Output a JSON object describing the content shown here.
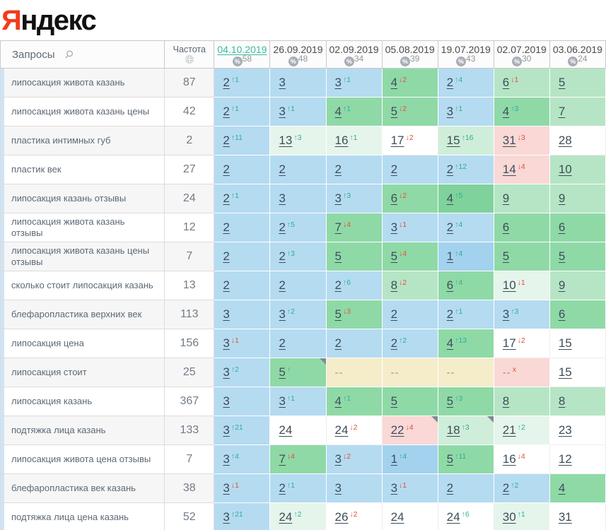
{
  "logo": {
    "first_letter": "Я",
    "rest": "ндекс"
  },
  "header": {
    "queries_label": "Запросы",
    "frequency_label": "Частота"
  },
  "columns": [
    {
      "date": "04.10.2019",
      "coverage": "58",
      "active": true
    },
    {
      "date": "26.09.2019",
      "coverage": "48",
      "active": false
    },
    {
      "date": "02.09.2019",
      "coverage": "34",
      "active": false
    },
    {
      "date": "05.08.2019",
      "coverage": "39",
      "active": false
    },
    {
      "date": "19.07.2019",
      "coverage": "43",
      "active": false
    },
    {
      "date": "02.07.2019",
      "coverage": "30",
      "active": false
    },
    {
      "date": "03.06.2019",
      "coverage": "24",
      "active": false
    }
  ],
  "colors": {
    "logo_red": "#f43b1d",
    "accent_teal": "#3bb89f",
    "change_up": "#2fae94",
    "change_down": "#e0503f",
    "pos_blue": "#b5dbf1",
    "pos_blue_dark": "#a3d2ef",
    "pos_green": "#8fd9a7",
    "pos_green_dark": "#7fd29b",
    "pos_lightgreen": "#b6e5c5",
    "pos_palegreen": "#cfeeda",
    "pos_verylightgreen": "#e5f5eb",
    "pos_white": "#ffffff",
    "pos_pink": "#f9d8d6",
    "pos_missing_tan": "#f5ecca"
  },
  "rows": [
    {
      "query": "липосакция живота казань",
      "frequency": "87",
      "cells": [
        {
          "value": "2",
          "chg": "↑1",
          "dir": "up",
          "bg": "b"
        },
        {
          "value": "3",
          "chg": "",
          "dir": "",
          "bg": "b"
        },
        {
          "value": "3",
          "chg": "↑1",
          "dir": "up",
          "bg": "b"
        },
        {
          "value": "4",
          "chg": "↓2",
          "dir": "down",
          "bg": "g"
        },
        {
          "value": "2",
          "chg": "↑4",
          "dir": "up",
          "bg": "b"
        },
        {
          "value": "6",
          "chg": "↓1",
          "dir": "down",
          "bg": "lg"
        },
        {
          "value": "5",
          "chg": "",
          "dir": "",
          "bg": "lg"
        }
      ]
    },
    {
      "query": "липосакция живота казань цены",
      "frequency": "42",
      "cells": [
        {
          "value": "2",
          "chg": "↑1",
          "dir": "up",
          "bg": "b"
        },
        {
          "value": "3",
          "chg": "↑1",
          "dir": "up",
          "bg": "b"
        },
        {
          "value": "4",
          "chg": "↑1",
          "dir": "up",
          "bg": "g"
        },
        {
          "value": "5",
          "chg": "↓2",
          "dir": "down",
          "bg": "g"
        },
        {
          "value": "3",
          "chg": "↑1",
          "dir": "up",
          "bg": "b"
        },
        {
          "value": "4",
          "chg": "↑3",
          "dir": "up",
          "bg": "g"
        },
        {
          "value": "7",
          "chg": "",
          "dir": "",
          "bg": "lg"
        }
      ]
    },
    {
      "query": "пластика интимных губ",
      "frequency": "2",
      "cells": [
        {
          "value": "2",
          "chg": "↑11",
          "dir": "up",
          "bg": "b"
        },
        {
          "value": "13",
          "chg": "↑3",
          "dir": "up",
          "bg": "vlg"
        },
        {
          "value": "16",
          "chg": "↑1",
          "dir": "up",
          "bg": "vlg"
        },
        {
          "value": "17",
          "chg": "↓2",
          "dir": "down",
          "bg": "w"
        },
        {
          "value": "15",
          "chg": "↑16",
          "dir": "up",
          "bg": "pg"
        },
        {
          "value": "31",
          "chg": "↓3",
          "dir": "down",
          "bg": "pk"
        },
        {
          "value": "28",
          "chg": "",
          "dir": "",
          "bg": "w"
        }
      ]
    },
    {
      "query": "пластик век",
      "frequency": "27",
      "cells": [
        {
          "value": "2",
          "chg": "",
          "dir": "",
          "bg": "b"
        },
        {
          "value": "2",
          "chg": "",
          "dir": "",
          "bg": "b"
        },
        {
          "value": "2",
          "chg": "",
          "dir": "",
          "bg": "b"
        },
        {
          "value": "2",
          "chg": "",
          "dir": "",
          "bg": "b"
        },
        {
          "value": "2",
          "chg": "↑12",
          "dir": "up",
          "bg": "b"
        },
        {
          "value": "14",
          "chg": "↓4",
          "dir": "down",
          "bg": "pk"
        },
        {
          "value": "10",
          "chg": "",
          "dir": "",
          "bg": "lg"
        }
      ]
    },
    {
      "query": "липосакция казань отзывы",
      "frequency": "24",
      "cells": [
        {
          "value": "2",
          "chg": "↑1",
          "dir": "up",
          "bg": "b"
        },
        {
          "value": "3",
          "chg": "",
          "dir": "",
          "bg": "b"
        },
        {
          "value": "3",
          "chg": "↑3",
          "dir": "up",
          "bg": "b"
        },
        {
          "value": "6",
          "chg": "↓2",
          "dir": "down",
          "bg": "g"
        },
        {
          "value": "4",
          "chg": "↑5",
          "dir": "up",
          "bg": "g2"
        },
        {
          "value": "9",
          "chg": "",
          "dir": "",
          "bg": "lg"
        },
        {
          "value": "9",
          "chg": "",
          "dir": "",
          "bg": "lg"
        }
      ]
    },
    {
      "query": "липосакция живота казань отзывы",
      "frequency": "12",
      "cells": [
        {
          "value": "2",
          "chg": "",
          "dir": "",
          "bg": "b"
        },
        {
          "value": "2",
          "chg": "↑5",
          "dir": "up",
          "bg": "b"
        },
        {
          "value": "7",
          "chg": "↓4",
          "dir": "down",
          "bg": "g"
        },
        {
          "value": "3",
          "chg": "↓1",
          "dir": "down",
          "bg": "b"
        },
        {
          "value": "2",
          "chg": "↑4",
          "dir": "up",
          "bg": "b"
        },
        {
          "value": "6",
          "chg": "",
          "dir": "",
          "bg": "g"
        },
        {
          "value": "6",
          "chg": "",
          "dir": "",
          "bg": "g"
        }
      ]
    },
    {
      "query": "липосакция живота казань цены отзывы",
      "frequency": "7",
      "cells": [
        {
          "value": "2",
          "chg": "",
          "dir": "",
          "bg": "b"
        },
        {
          "value": "2",
          "chg": "↑3",
          "dir": "up",
          "bg": "b"
        },
        {
          "value": "5",
          "chg": "",
          "dir": "",
          "bg": "g"
        },
        {
          "value": "5",
          "chg": "↓4",
          "dir": "down",
          "bg": "g"
        },
        {
          "value": "1",
          "chg": "↑4",
          "dir": "up",
          "bg": "b1"
        },
        {
          "value": "5",
          "chg": "",
          "dir": "",
          "bg": "g"
        },
        {
          "value": "5",
          "chg": "",
          "dir": "",
          "bg": "g"
        }
      ]
    },
    {
      "query": "сколько стоит липосакция казань",
      "frequency": "13",
      "cells": [
        {
          "value": "2",
          "chg": "",
          "dir": "",
          "bg": "b"
        },
        {
          "value": "2",
          "chg": "",
          "dir": "",
          "bg": "b"
        },
        {
          "value": "2",
          "chg": "↑6",
          "dir": "up",
          "bg": "b"
        },
        {
          "value": "8",
          "chg": "↓2",
          "dir": "down",
          "bg": "lg"
        },
        {
          "value": "6",
          "chg": "↑4",
          "dir": "up",
          "bg": "g"
        },
        {
          "value": "10",
          "chg": "↓1",
          "dir": "down",
          "bg": "vlg"
        },
        {
          "value": "9",
          "chg": "",
          "dir": "",
          "bg": "lg"
        }
      ]
    },
    {
      "query": "блефаропластика верхних век",
      "frequency": "113",
      "cells": [
        {
          "value": "3",
          "chg": "",
          "dir": "",
          "bg": "b"
        },
        {
          "value": "3",
          "chg": "↑2",
          "dir": "up",
          "bg": "b"
        },
        {
          "value": "5",
          "chg": "↓3",
          "dir": "down",
          "bg": "g"
        },
        {
          "value": "2",
          "chg": "",
          "dir": "",
          "bg": "b"
        },
        {
          "value": "2",
          "chg": "↑1",
          "dir": "up",
          "bg": "b"
        },
        {
          "value": "3",
          "chg": "↑3",
          "dir": "up",
          "bg": "b"
        },
        {
          "value": "6",
          "chg": "",
          "dir": "",
          "bg": "g"
        }
      ]
    },
    {
      "query": "липосакция цена",
      "frequency": "156",
      "cells": [
        {
          "value": "3",
          "chg": "↓1",
          "dir": "down",
          "bg": "b"
        },
        {
          "value": "2",
          "chg": "",
          "dir": "",
          "bg": "b"
        },
        {
          "value": "2",
          "chg": "",
          "dir": "",
          "bg": "b"
        },
        {
          "value": "2",
          "chg": "↑2",
          "dir": "up",
          "bg": "b"
        },
        {
          "value": "4",
          "chg": "↑13",
          "dir": "up",
          "bg": "g"
        },
        {
          "value": "17",
          "chg": "↓2",
          "dir": "down",
          "bg": "w"
        },
        {
          "value": "15",
          "chg": "",
          "dir": "",
          "bg": "w"
        }
      ]
    },
    {
      "query": "липосакция стоит",
      "frequency": "25",
      "cells": [
        {
          "value": "3",
          "chg": "↑2",
          "dir": "up",
          "bg": "b"
        },
        {
          "value": "5",
          "chg": "↑",
          "dir": "up",
          "bg": "g",
          "note": true
        },
        {
          "value": "--",
          "chg": "",
          "dir": "",
          "bg": "tan"
        },
        {
          "value": "--",
          "chg": "",
          "dir": "",
          "bg": "tan"
        },
        {
          "value": "--",
          "chg": "",
          "dir": "",
          "bg": "tan"
        },
        {
          "value": "--",
          "chg": "x",
          "dir": "down",
          "bg": "pk"
        },
        {
          "value": "15",
          "chg": "",
          "dir": "",
          "bg": "w"
        }
      ]
    },
    {
      "query": "липосакция казань",
      "frequency": "367",
      "cells": [
        {
          "value": "3",
          "chg": "",
          "dir": "",
          "bg": "b"
        },
        {
          "value": "3",
          "chg": "↑1",
          "dir": "up",
          "bg": "b"
        },
        {
          "value": "4",
          "chg": "↑1",
          "dir": "up",
          "bg": "g"
        },
        {
          "value": "5",
          "chg": "",
          "dir": "",
          "bg": "g"
        },
        {
          "value": "5",
          "chg": "↑3",
          "dir": "up",
          "bg": "g"
        },
        {
          "value": "8",
          "chg": "",
          "dir": "",
          "bg": "lg"
        },
        {
          "value": "8",
          "chg": "",
          "dir": "",
          "bg": "lg"
        }
      ]
    },
    {
      "query": "подтяжка лица казань",
      "frequency": "133",
      "cells": [
        {
          "value": "3",
          "chg": "↑21",
          "dir": "up",
          "bg": "b"
        },
        {
          "value": "24",
          "chg": "",
          "dir": "",
          "bg": "w"
        },
        {
          "value": "24",
          "chg": "↓2",
          "dir": "down",
          "bg": "w"
        },
        {
          "value": "22",
          "chg": "↓4",
          "dir": "down",
          "bg": "pk",
          "note": true
        },
        {
          "value": "18",
          "chg": "↑3",
          "dir": "up",
          "bg": "pg",
          "note": true
        },
        {
          "value": "21",
          "chg": "↑2",
          "dir": "up",
          "bg": "vlg"
        },
        {
          "value": "23",
          "chg": "",
          "dir": "",
          "bg": "w"
        }
      ]
    },
    {
      "query": "липосакция живота цена отзывы",
      "frequency": "7",
      "cells": [
        {
          "value": "3",
          "chg": "↑4",
          "dir": "up",
          "bg": "b"
        },
        {
          "value": "7",
          "chg": "↓4",
          "dir": "down",
          "bg": "g"
        },
        {
          "value": "3",
          "chg": "↓2",
          "dir": "down",
          "bg": "b"
        },
        {
          "value": "1",
          "chg": "↑4",
          "dir": "up",
          "bg": "b1"
        },
        {
          "value": "5",
          "chg": "↑11",
          "dir": "up",
          "bg": "g"
        },
        {
          "value": "16",
          "chg": "↓4",
          "dir": "down",
          "bg": "w"
        },
        {
          "value": "12",
          "chg": "",
          "dir": "",
          "bg": "w"
        }
      ]
    },
    {
      "query": "блефаропластика век казань",
      "frequency": "38",
      "cells": [
        {
          "value": "3",
          "chg": "↓1",
          "dir": "down",
          "bg": "b"
        },
        {
          "value": "2",
          "chg": "↑1",
          "dir": "up",
          "bg": "b"
        },
        {
          "value": "3",
          "chg": "",
          "dir": "",
          "bg": "b"
        },
        {
          "value": "3",
          "chg": "↓1",
          "dir": "down",
          "bg": "b"
        },
        {
          "value": "2",
          "chg": "",
          "dir": "",
          "bg": "b"
        },
        {
          "value": "2",
          "chg": "↑2",
          "dir": "up",
          "bg": "b"
        },
        {
          "value": "4",
          "chg": "",
          "dir": "",
          "bg": "g"
        }
      ]
    },
    {
      "query": "подтяжка лица цена казань",
      "frequency": "52",
      "cells": [
        {
          "value": "3",
          "chg": "↑21",
          "dir": "up",
          "bg": "b"
        },
        {
          "value": "24",
          "chg": "↑2",
          "dir": "up",
          "bg": "vlg"
        },
        {
          "value": "26",
          "chg": "↓2",
          "dir": "down",
          "bg": "w"
        },
        {
          "value": "24",
          "chg": "",
          "dir": "",
          "bg": "w"
        },
        {
          "value": "24",
          "chg": "↑6",
          "dir": "up",
          "bg": "w"
        },
        {
          "value": "30",
          "chg": "↑1",
          "dir": "up",
          "bg": "vlg"
        },
        {
          "value": "31",
          "chg": "",
          "dir": "",
          "bg": "w"
        }
      ]
    }
  ]
}
